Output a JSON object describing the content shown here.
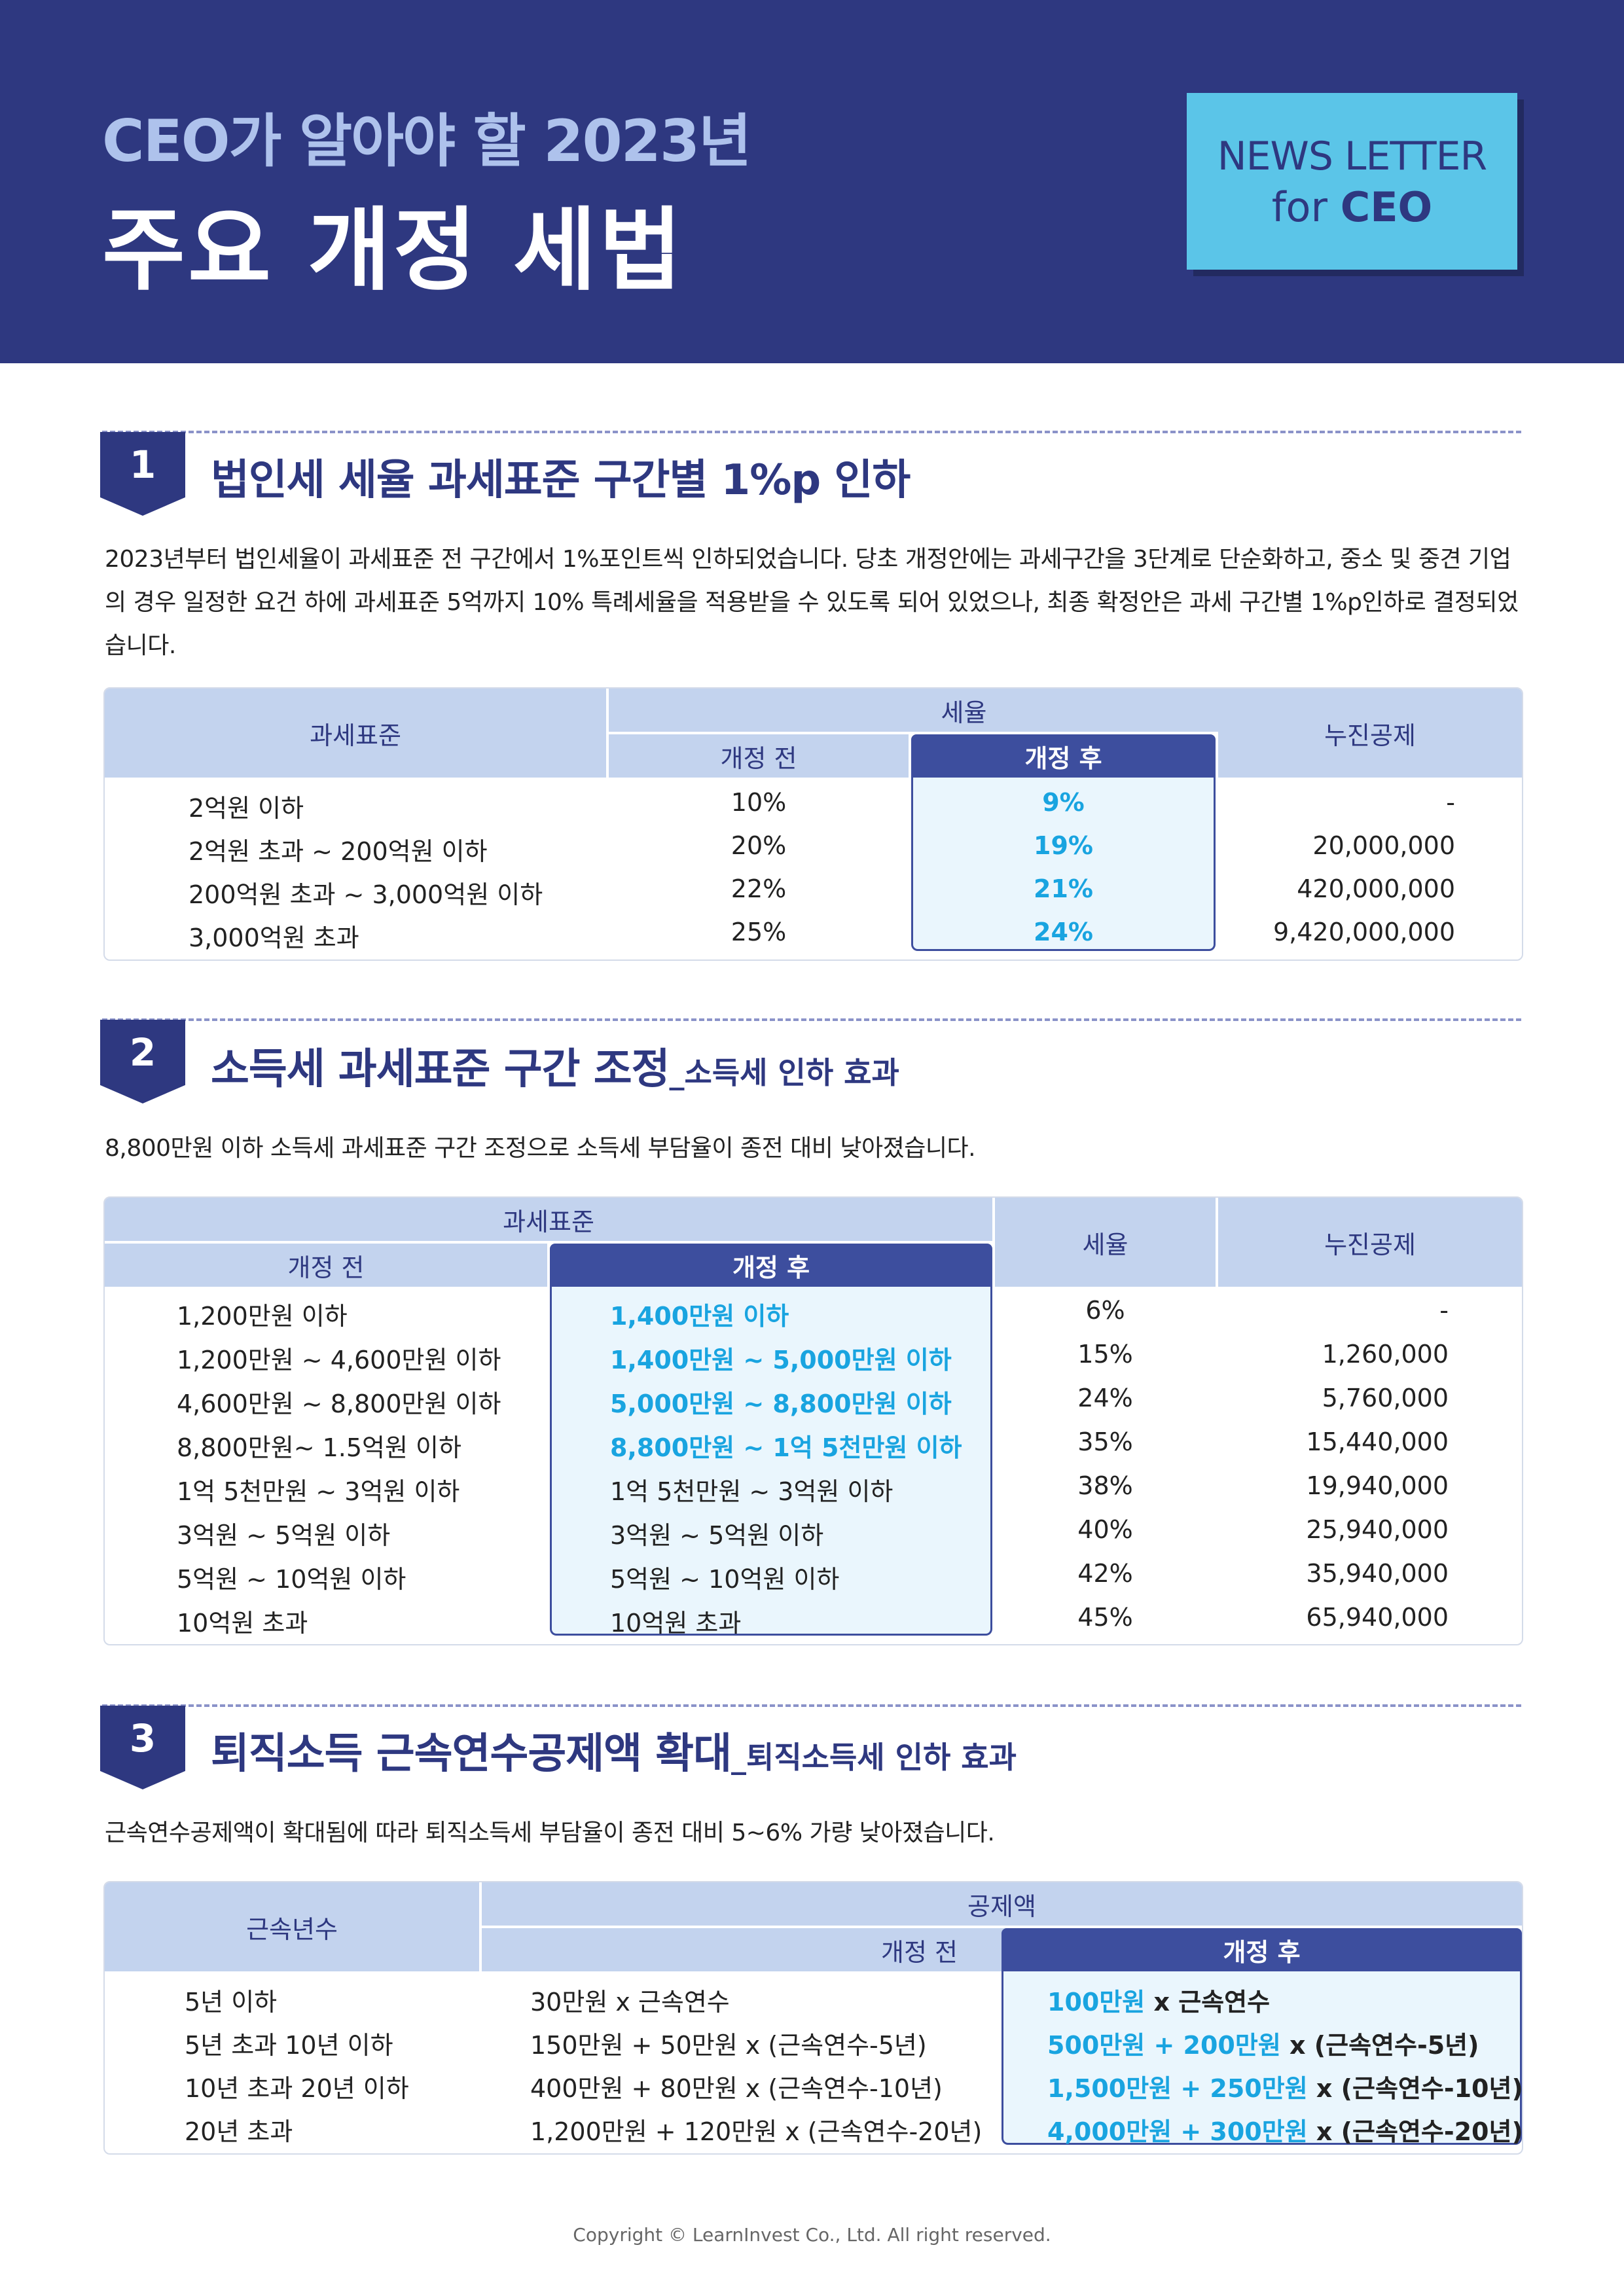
{
  "header": {
    "subtitle": "CEO가 알아야 할 2023년",
    "title": "주요 개정 세법",
    "badge_line1": "NEWS LETTER",
    "badge_for": "for ",
    "badge_ceo": "CEO"
  },
  "s1": {
    "num": "1",
    "title": "법인세 세율 과세표준 구간별 1%p 인하",
    "para": "2023년부터 법인세율이 과세표준 전 구간에서 1%포인트씩 인하되었습니다. 당초 개정안에는 과세구간을 3단계로 단순화하고, 중소 및 중견 기업의 경우 일정한 요건 하에 과세표준 5억까지 10% 특례세율을 적용받을 수 있도록 되어 있었으나, 최종 확정안은 과세 구간별 1%p인하로 결정되었습니다.",
    "table": {
      "h_base": "과세표준",
      "h_rate": "세율",
      "h_before": "개정 전",
      "h_after": "개정 후",
      "h_deduct": "누진공제",
      "rows": [
        {
          "base": "2억원 이하",
          "before": "10%",
          "after": "9%",
          "deduct": "-"
        },
        {
          "base": "2억원 초과 ~ 200억원 이하",
          "before": "20%",
          "after": "19%",
          "deduct": "20,000,000"
        },
        {
          "base": "200억원 초과 ~ 3,000억원 이하",
          "before": "22%",
          "after": "21%",
          "deduct": "420,000,000"
        },
        {
          "base": "3,000억원 초과",
          "before": "25%",
          "after": "24%",
          "deduct": "9,420,000,000"
        }
      ]
    }
  },
  "s2": {
    "num": "2",
    "title": "소득세 과세표준 구간 조정",
    "title_small": "_소득세 인하 효과",
    "para": "8,800만원 이하 소득세 과세표준 구간 조정으로 소득세 부담율이 종전 대비 낮아졌습니다.",
    "table": {
      "h_base": "과세표준",
      "h_before": "개정 전",
      "h_after": "개정 후",
      "h_rate": "세율",
      "h_deduct": "누진공제",
      "rows": [
        {
          "before": "1,200만원 이하",
          "after": "1,400만원 이하",
          "rate": "6%",
          "deduct": "-"
        },
        {
          "before": "1,200만원 ~ 4,600만원 이하",
          "after": "1,400만원  ~ 5,000만원 이하",
          "rate": "15%",
          "deduct": "1,260,000"
        },
        {
          "before": "4,600만원 ~ 8,800만원 이하",
          "after": "5,000만원 ~ 8,800만원 이하",
          "rate": "24%",
          "deduct": "5,760,000"
        },
        {
          "before": "8,800만원~ 1.5억원 이하",
          "after": "8,800만원  ~ 1억 5천만원 이하",
          "rate": "35%",
          "deduct": "15,440,000"
        },
        {
          "before": "1억 5천만원  ~ 3억원 이하",
          "after": "1억 5천만원 ~ 3억원 이하",
          "rate": "38%",
          "deduct": "19,940,000"
        },
        {
          "before": "3억원  ~ 5억원 이하",
          "after": "3억원 ~ 5억원 이하",
          "rate": "40%",
          "deduct": "25,940,000"
        },
        {
          "before": "5억원 ~ 10억원  이하",
          "after": "5억원 ~ 10억원 이하",
          "rate": "42%",
          "deduct": "35,940,000"
        },
        {
          "before": "10억원 초과",
          "after": "10억원 초과",
          "rate": "45%",
          "deduct": "65,940,000"
        }
      ]
    }
  },
  "s3": {
    "num": "3",
    "title": "퇴직소득 근속연수공제액 확대",
    "title_small": "_퇴직소득세 인하 효과",
    "para": "근속연수공제액이 확대됨에 따라 퇴직소득세 부담율이 종전 대비 5~6% 가량 낮아졌습니다.",
    "table": {
      "h_years": "근속년수",
      "h_amount": "공제액",
      "h_before": "개정 전",
      "h_after": "개정 후",
      "rows": [
        {
          "years": "5년 이하",
          "before": "30만원 x 근속연수",
          "after_a": "100만원",
          "after_b": " x 근속연수"
        },
        {
          "years": "5년 초과 10년 이하",
          "before": "150만원 + 50만원 x (근속연수-5년)",
          "after_a": "500만원 + 200만원",
          "after_b": " x (근속연수-5년)"
        },
        {
          "years": "10년 초과 20년 이하",
          "before": "400만원 + 80만원 x (근속연수-10년)",
          "after_a": "1,500만원 + 250만원",
          "after_b": " x (근속연수-10년)"
        },
        {
          "years": "20년 초과",
          "before": "1,200만원 + 120만원 x (근속연수-20년)",
          "after_a": "4,000만원 + 300만원",
          "after_b": " x (근속연수-20년)"
        }
      ]
    }
  },
  "footer": "Copyright © LearnInvest Co., Ltd.   All right reserved.",
  "colors": {
    "navy": "#2e3880",
    "cyan": "#19a4e0",
    "header_light": "#c3d3ee",
    "badge": "#5bc5e8"
  }
}
